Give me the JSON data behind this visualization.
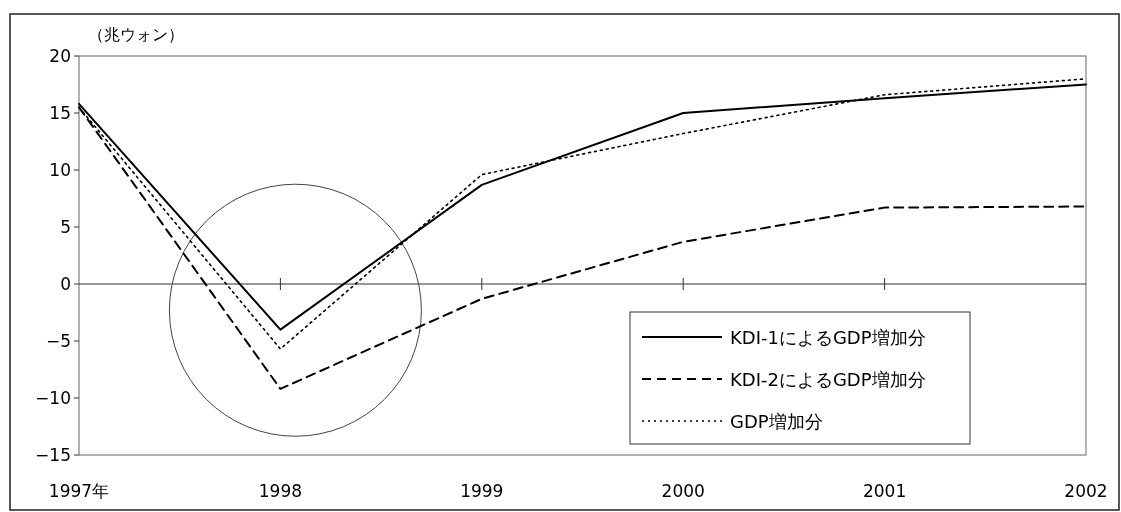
{
  "chart_data": {
    "type": "line",
    "ylabel": "（兆ウォン）",
    "categories": [
      "1997年",
      "1998",
      "1999",
      "2000",
      "2001",
      "2002"
    ],
    "series": [
      {
        "name": "KDI-1によるGDP増加分",
        "color": "#000000",
        "line_style": "solid",
        "values": [
          15.8,
          -4,
          8.7,
          15,
          16.3,
          17.5
        ]
      },
      {
        "name": "KDI-2によるGDP増加分",
        "color": "#000000",
        "line_style": "dashed",
        "values": [
          15.5,
          -9.2,
          -1.3,
          3.7,
          6.7,
          6.8
        ]
      },
      {
        "name": "GDP増加分",
        "color": "#000000",
        "line_style": "dotted",
        "values": [
          15.5,
          -5.7,
          9.6,
          13.2,
          16.6,
          18
        ]
      }
    ],
    "ylim": [
      -15,
      20
    ],
    "yticks": [
      {
        "value": -15,
        "label": "−15"
      },
      {
        "value": -10,
        "label": "−10"
      },
      {
        "value": -5,
        "label": "−5"
      },
      0,
      5,
      10,
      15,
      20
    ],
    "ref_lines": [
      {
        "axis": "y",
        "value": 0,
        "color": "#333333"
      }
    ],
    "grid": false,
    "legend": "bottom right",
    "marker": "none"
  }
}
